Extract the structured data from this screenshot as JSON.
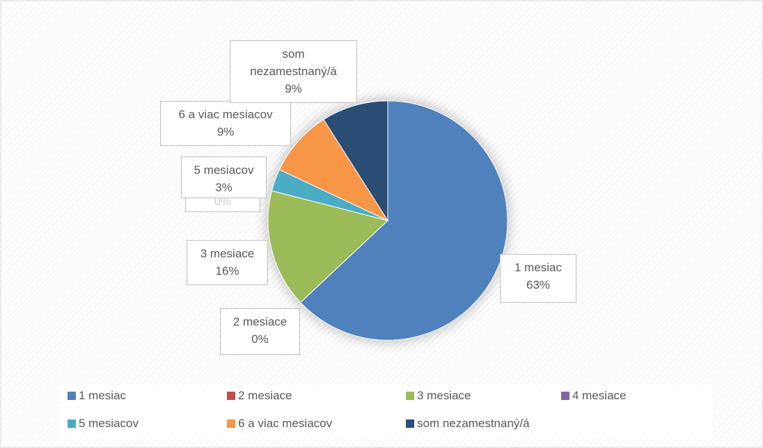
{
  "chart_data": {
    "type": "pie",
    "categories": [
      "1 mesiac",
      "2 mesiace",
      "3 mesiace",
      "4 mesiace",
      "5 mesiacov",
      "6 a viac mesiacov",
      "som nezamestnaný/á"
    ],
    "values": [
      63,
      0,
      16,
      0,
      3,
      9,
      9
    ],
    "value_labels": [
      "63%",
      "0%",
      "16%",
      "0%",
      "3%",
      "9%",
      "9%"
    ],
    "colors": [
      "#4f81bd",
      "#c0504d",
      "#9bbb59",
      "#8064a2",
      "#4bacc6",
      "#f79646",
      "#2c4d75"
    ],
    "legend": "bottom"
  }
}
